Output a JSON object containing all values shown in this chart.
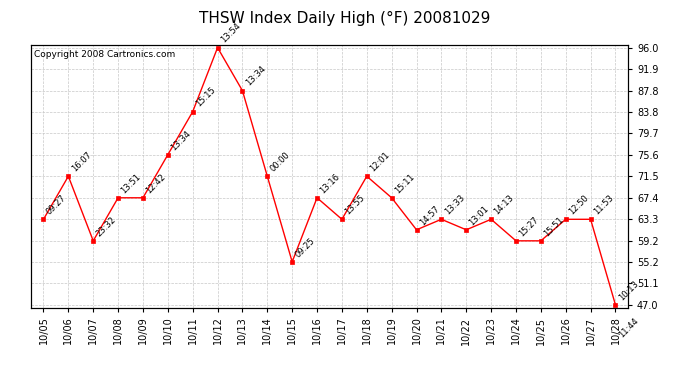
{
  "title": "THSW Index Daily High (°F) 20081029",
  "copyright": "Copyright 2008 Cartronics.com",
  "dates": [
    "10/05",
    "10/06",
    "10/07",
    "10/08",
    "10/09",
    "10/10",
    "10/11",
    "10/12",
    "10/13",
    "10/14",
    "10/15",
    "10/16",
    "10/17",
    "10/18",
    "10/19",
    "10/20",
    "10/21",
    "10/22",
    "10/23",
    "10/24",
    "10/25",
    "10/26",
    "10/27",
    "10/28"
  ],
  "values": [
    63.3,
    71.5,
    59.2,
    67.4,
    67.4,
    75.6,
    83.8,
    96.0,
    87.8,
    71.5,
    55.2,
    67.4,
    63.3,
    71.5,
    67.4,
    61.3,
    63.3,
    61.3,
    63.3,
    59.2,
    59.2,
    63.3,
    63.3,
    47.0
  ],
  "times": [
    "09:27",
    "16:07",
    "23:32",
    "13:51",
    "12:42",
    "13:34",
    "15:15",
    "13:54",
    "13:34",
    "00:00",
    "09:25",
    "13:16",
    "13:55",
    "12:01",
    "15:11",
    "14:57",
    "13:33",
    "13:01",
    "14:13",
    "15:27",
    "15:51",
    "12:50",
    "11:53",
    "10:13"
  ],
  "extra_time_10_28": "11:44",
  "line_color": "#ff0000",
  "marker_color": "#ff0000",
  "bg_color": "#ffffff",
  "grid_color": "#c8c8c8",
  "ylim_min": 47.0,
  "ylim_max": 96.0,
  "yticks": [
    47.0,
    51.1,
    55.2,
    59.2,
    63.3,
    67.4,
    71.5,
    75.6,
    79.7,
    83.8,
    87.8,
    91.9,
    96.0
  ],
  "title_fontsize": 11,
  "annot_fontsize": 6,
  "copyright_fontsize": 6.5,
  "tick_fontsize": 7
}
